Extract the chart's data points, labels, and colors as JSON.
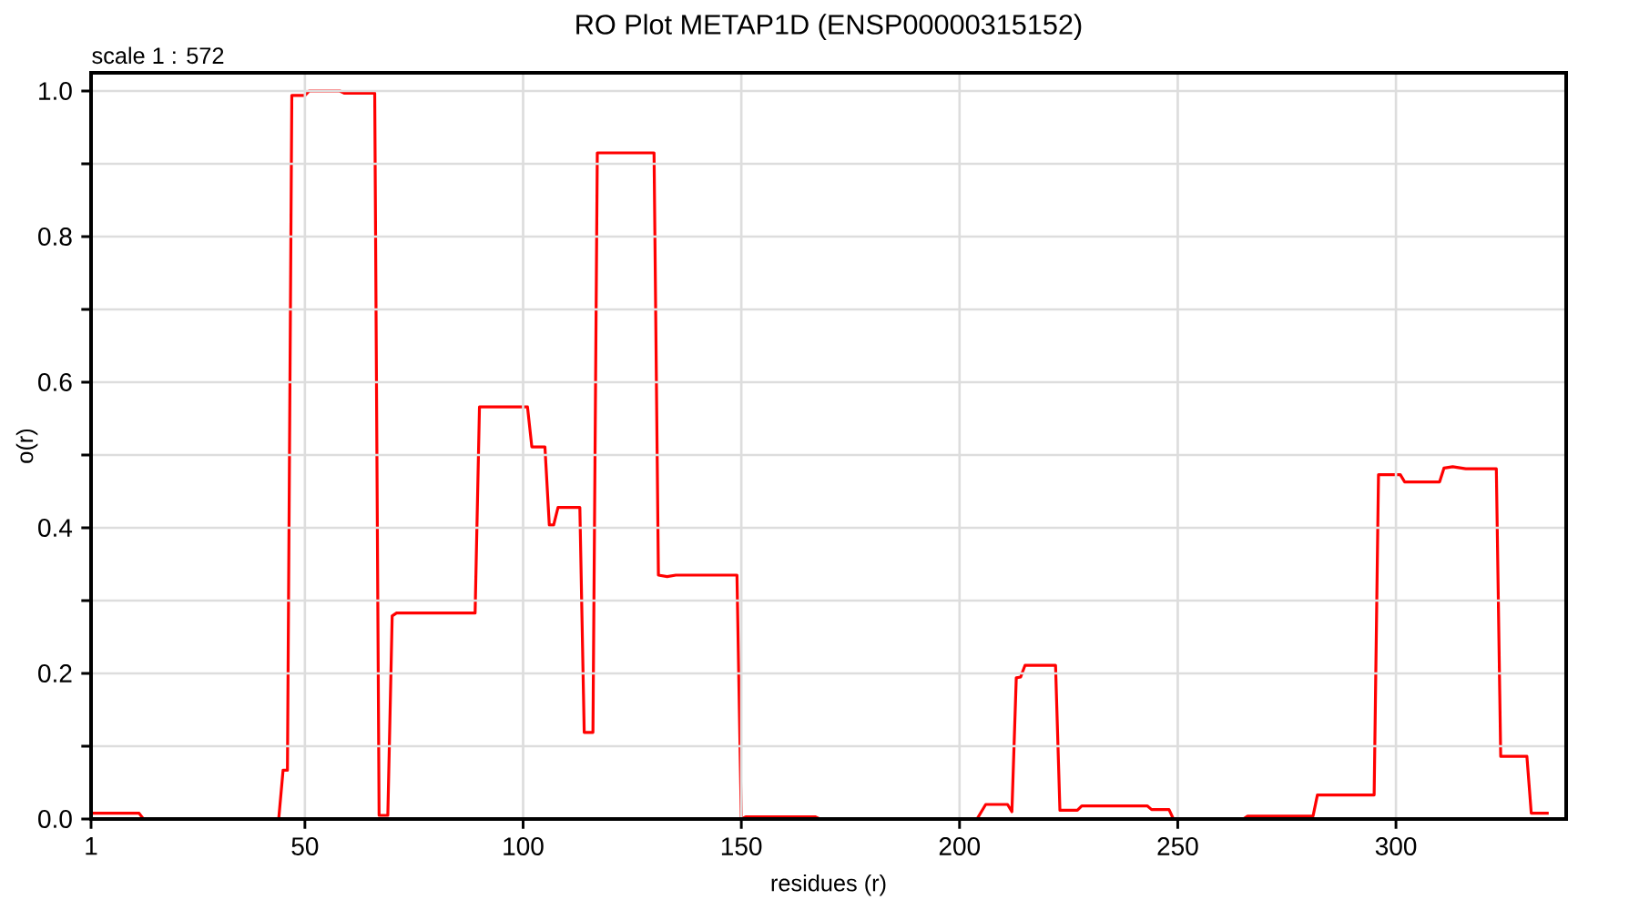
{
  "chart_data": {
    "type": "line",
    "title": "RO Plot METAP1D (ENSP00000315152)",
    "xlabel": "residues (r)",
    "ylabel": "o(r)",
    "annotations": [
      "scale 1 : 572"
    ],
    "x": [
      1,
      12,
      13,
      44,
      45,
      46,
      47,
      50,
      51,
      58,
      59,
      66,
      67,
      69,
      70,
      71,
      89,
      90,
      101,
      102,
      105,
      106,
      107,
      108,
      113,
      114,
      116,
      117,
      130,
      131,
      133,
      135,
      149,
      150,
      151,
      167,
      168,
      204,
      206,
      211,
      212,
      213,
      214,
      215,
      222,
      223,
      227,
      228,
      243,
      244,
      248,
      249,
      265,
      266,
      281,
      282,
      295,
      296,
      301,
      302,
      310,
      311,
      313,
      316,
      323,
      324,
      330,
      331,
      335
    ],
    "values": [
      0.008,
      0.008,
      0,
      0,
      0.067,
      0.067,
      0.994,
      0.994,
      1.0,
      1.0,
      0.997,
      0.997,
      0.005,
      0.005,
      0.279,
      0.283,
      0.283,
      0.566,
      0.566,
      0.511,
      0.511,
      0.404,
      0.404,
      0.428,
      0.428,
      0.119,
      0.119,
      0.915,
      0.915,
      0.335,
      0.333,
      0.335,
      0.335,
      0,
      0.003,
      0.003,
      0,
      0,
      0.02,
      0.02,
      0.01,
      0.194,
      0.195,
      0.211,
      0.211,
      0.012,
      0.012,
      0.018,
      0.018,
      0.013,
      0.013,
      0,
      0,
      0.004,
      0.004,
      0.033,
      0.033,
      0.473,
      0.473,
      0.463,
      0.463,
      0.482,
      0.484,
      0.481,
      0.481,
      0.086,
      0.086,
      0.008,
      0.008
    ],
    "color": "#ff0000",
    "marker": "none",
    "line_style": "solid",
    "xlim": [
      1,
      339
    ],
    "ylim": [
      0,
      1.025
    ],
    "xticks": [
      1,
      50,
      100,
      150,
      200,
      250,
      300
    ],
    "yticks": [
      {
        "value": 0,
        "label": "0.0"
      },
      {
        "value": 0.1,
        "label": null
      },
      0.2,
      {
        "value": 0.3,
        "label": null
      },
      0.4,
      {
        "value": 0.5,
        "label": null
      },
      0.6,
      {
        "value": 0.7,
        "label": null
      },
      0.8,
      {
        "value": 0.9,
        "label": null
      },
      {
        "value": 1.0,
        "label": "1.0"
      }
    ],
    "grid": true
  }
}
